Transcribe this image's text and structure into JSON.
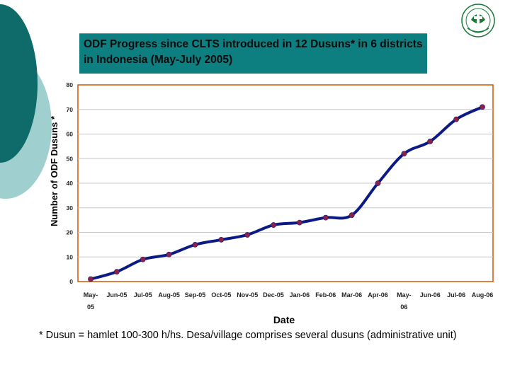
{
  "slide": {
    "title": "ODF Progress since CLTS introduced in 12 Dusuns* in 6 districts in Indonesia (May-July 2005)",
    "footnote": "* Dusun = hamlet 100-300 h/hs.  Desa/village comprises several dusuns (administrative unit)"
  },
  "colors": {
    "teal_dark": "#0e6b69",
    "teal_light": "#9fcfcf",
    "title_bg": "#0e7f80",
    "line": "#0b1a84",
    "marker": "#8e2246",
    "plot_border": "#d35400",
    "grid": "#c8c8c8"
  },
  "chart_data": {
    "type": "line",
    "title": "",
    "xlabel": "Date",
    "ylabel": "Number of ODF Dusuns *",
    "ylim": [
      0,
      80
    ],
    "yticks": [
      0,
      10,
      20,
      30,
      40,
      50,
      60,
      70,
      80
    ],
    "x_tick_labels": [
      "May-05",
      "Jun-05",
      "Jul-05",
      "Aug-05",
      "Sep-05",
      "Oct-05",
      "Nov-05",
      "Dec-05",
      "Jan-06",
      "Feb-06",
      "Mar-06",
      "Apr-06",
      "May-06",
      "Jun-06",
      "Jul-06",
      "Aug-06"
    ],
    "series": [
      {
        "name": "ODF Dusuns",
        "x": [
          0,
          1,
          2,
          3,
          4,
          5,
          6,
          7,
          8,
          9,
          10,
          11,
          12,
          13,
          14,
          15
        ],
        "values": [
          1,
          4,
          9,
          11,
          15,
          17,
          19,
          23,
          24,
          26,
          27,
          40,
          52,
          57,
          66,
          71
        ]
      }
    ]
  }
}
